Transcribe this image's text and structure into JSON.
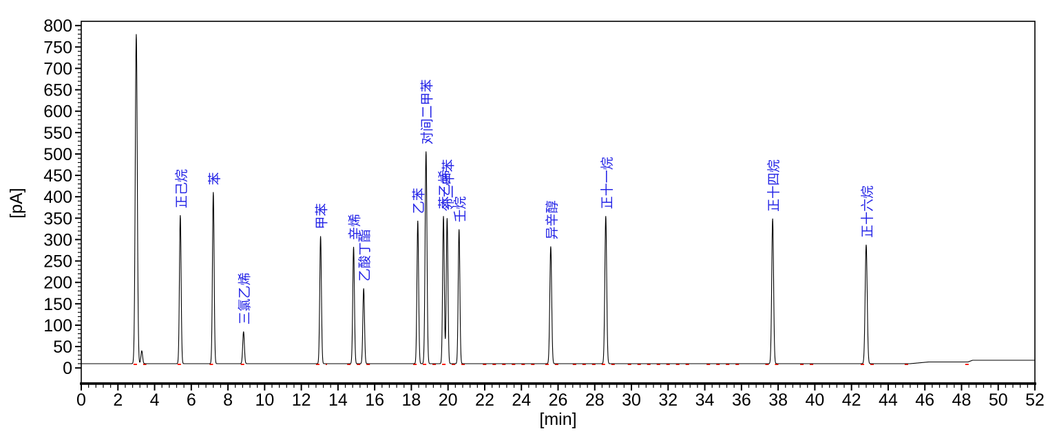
{
  "chart_data": {
    "type": "line",
    "title": "",
    "xlabel": "[min]",
    "ylabel": "[pA]",
    "xlim": [
      0,
      52
    ],
    "ylim": [
      -35,
      810
    ],
    "x_major_step": 2,
    "x_minor_step": 0.4,
    "y_major_step": 50,
    "y_minor_step": 10,
    "x_tick_labels": [
      0,
      2,
      4,
      6,
      8,
      10,
      12,
      14,
      16,
      18,
      20,
      22,
      24,
      26,
      28,
      30,
      32,
      34,
      36,
      38,
      40,
      42,
      44,
      46,
      48,
      50,
      52
    ],
    "y_tick_labels": [
      0,
      50,
      100,
      150,
      200,
      250,
      300,
      350,
      400,
      450,
      500,
      550,
      600,
      650,
      700,
      750,
      800
    ],
    "grid": false,
    "legend": "none",
    "background_color": "#ffffff",
    "trace_color": "#000000",
    "peak_label_color": "#2323e6",
    "axis_color": "#000000",
    "integration_mark_color": "#ff1a00",
    "baseline_pA": 10,
    "baseline_steps": [
      {
        "x_start": 45.2,
        "x_end": 46.2,
        "to_value": 14
      },
      {
        "x_start": 48.35,
        "x_end": 48.6,
        "to_value": 18
      }
    ],
    "integration_segments": [
      [
        2.85,
        3.55
      ],
      [
        5.25,
        5.75
      ],
      [
        7.0,
        7.5
      ],
      [
        8.7,
        9.15
      ],
      [
        12.8,
        13.4
      ],
      [
        14.5,
        15.75
      ],
      [
        18.1,
        21.1
      ],
      [
        21.9,
        24.8
      ],
      [
        25.3,
        26.1
      ],
      [
        26.8,
        29.1
      ],
      [
        29.8,
        33.2
      ],
      [
        34.1,
        36.1
      ],
      [
        37.3,
        38.15
      ],
      [
        39.2,
        40.1
      ],
      [
        42.5,
        43.3
      ],
      [
        44.9,
        45.3
      ],
      [
        48.2,
        48.5
      ]
    ],
    "peaks": [
      {
        "name": "",
        "rt": 3.0,
        "apex_pA": 780,
        "sigma": 0.055
      },
      {
        "name": "",
        "rt": 3.3,
        "apex_pA": 40,
        "sigma": 0.045
      },
      {
        "name": "正己烷",
        "rt": 5.4,
        "apex_pA": 357,
        "sigma": 0.045
      },
      {
        "name": "苯",
        "rt": 7.2,
        "apex_pA": 411,
        "sigma": 0.045
      },
      {
        "name": "三氯乙烯",
        "rt": 8.85,
        "apex_pA": 85,
        "sigma": 0.045
      },
      {
        "name": "甲苯",
        "rt": 13.05,
        "apex_pA": 308,
        "sigma": 0.045
      },
      {
        "name": "辛烯",
        "rt": 14.85,
        "apex_pA": 283,
        "sigma": 0.045
      },
      {
        "name": "乙酸丁酯",
        "rt": 15.4,
        "apex_pA": 186,
        "sigma": 0.045
      },
      {
        "name": "乙苯",
        "rt": 18.35,
        "apex_pA": 344,
        "sigma": 0.045
      },
      {
        "name": "对间二甲苯",
        "rt": 18.8,
        "apex_pA": 506,
        "sigma": 0.05
      },
      {
        "name": "苯乙烯",
        "rt": 19.75,
        "apex_pA": 355,
        "sigma": 0.045
      },
      {
        "name": "邻二甲苯",
        "rt": 19.95,
        "apex_pA": 350,
        "sigma": 0.045
      },
      {
        "name": "壬烷",
        "rt": 20.6,
        "apex_pA": 324,
        "sigma": 0.045
      },
      {
        "name": "异辛醇",
        "rt": 25.6,
        "apex_pA": 284,
        "sigma": 0.05
      },
      {
        "name": "正十一烷",
        "rt": 28.6,
        "apex_pA": 355,
        "sigma": 0.05
      },
      {
        "name": "正十四烷",
        "rt": 37.7,
        "apex_pA": 349,
        "sigma": 0.05
      },
      {
        "name": "正十六烷",
        "rt": 42.8,
        "apex_pA": 288,
        "sigma": 0.055
      }
    ]
  }
}
